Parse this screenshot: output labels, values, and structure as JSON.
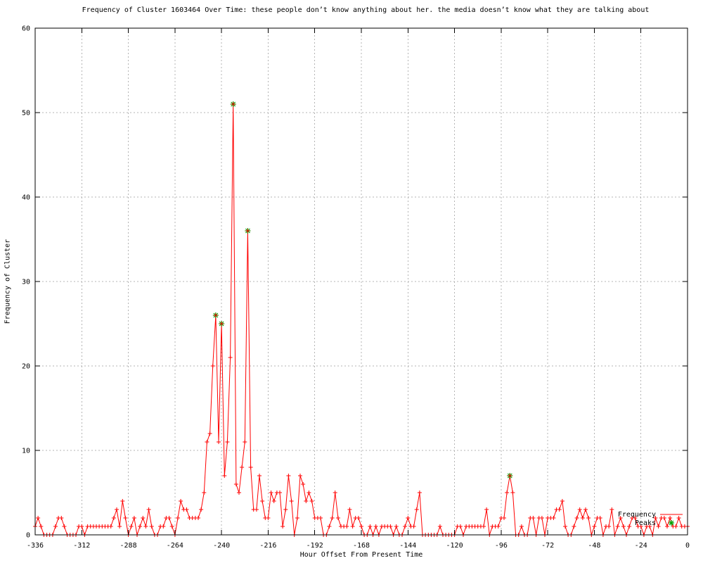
{
  "title": "Frequency of Cluster 1603464 Over Time: these people don’t know anything about her. the media doesn’t know what they are talking about",
  "axes": {
    "x": {
      "label": "Hour Offset From Present Time",
      "ticks": [
        -336,
        -312,
        -288,
        -264,
        -240,
        -216,
        -192,
        -168,
        -144,
        -120,
        -96,
        -72,
        -48,
        -24,
        0
      ]
    },
    "y": {
      "label": "Frequency of Cluster",
      "ticks": [
        0,
        10,
        20,
        30,
        40,
        50,
        60
      ]
    }
  },
  "legend": [
    {
      "label": "Frequency",
      "sample": "line"
    },
    {
      "label": "Peaks",
      "sample": "asterisk"
    }
  ],
  "colors": {
    "line": "#ff0000",
    "peak_marker": "#00a000",
    "grid": "#b4b4b4",
    "axis": "#000000",
    "text": "#000000",
    "background": "#ffffff"
  },
  "chart_data": {
    "type": "line",
    "title": "Frequency of Cluster 1603464 Over Time: these people don’t know anything about her. the media doesn’t know what they are talking about",
    "xlabel": "Hour Offset From Present Time",
    "ylabel": "Frequency of Cluster",
    "xlim": [
      -336,
      0
    ],
    "ylim": [
      0,
      60
    ],
    "grid": true,
    "legend_position": "bottom-right",
    "x_start": -336,
    "x_step": 1.5,
    "series": [
      {
        "name": "Frequency",
        "marker": "plus",
        "values": [
          1,
          2,
          1,
          0,
          0,
          0,
          0,
          1,
          2,
          2,
          1,
          0,
          0,
          0,
          0,
          1,
          1,
          0,
          1,
          1,
          1,
          1,
          1,
          1,
          1,
          1,
          1,
          2,
          3,
          1,
          4,
          2,
          0,
          1,
          2,
          0,
          1,
          2,
          1,
          3,
          1,
          0,
          0,
          1,
          1,
          2,
          2,
          1,
          0,
          2,
          4,
          3,
          3,
          2,
          2,
          2,
          2,
          3,
          5,
          11,
          12,
          20,
          26,
          11,
          25,
          7,
          11,
          21,
          51,
          6,
          5,
          8,
          11,
          36,
          8,
          3,
          3,
          7,
          4,
          2,
          2,
          5,
          4,
          5,
          5,
          1,
          3,
          7,
          4,
          0,
          2,
          7,
          6,
          4,
          5,
          4,
          2,
          2,
          2,
          0,
          0,
          1,
          2,
          5,
          2,
          1,
          1,
          1,
          3,
          1,
          2,
          2,
          1,
          0,
          0,
          1,
          0,
          1,
          0,
          1,
          1,
          1,
          1,
          0,
          1,
          0,
          0,
          1,
          2,
          1,
          1,
          3,
          5,
          0,
          0,
          0,
          0,
          0,
          0,
          1,
          0,
          0,
          0,
          0,
          0,
          1,
          1,
          0,
          1,
          1,
          1,
          1,
          1,
          1,
          1,
          3,
          0,
          1,
          1,
          1,
          2,
          2,
          5,
          7,
          5,
          0,
          0,
          1,
          0,
          0,
          2,
          2,
          0,
          2,
          2,
          0,
          2,
          2,
          2,
          3,
          3,
          4,
          1,
          0,
          0,
          1,
          2,
          3,
          2,
          3,
          2,
          0,
          1,
          2,
          2,
          0,
          1,
          1,
          3,
          0,
          1,
          2,
          1,
          0,
          1,
          2,
          2,
          1,
          1,
          0,
          1,
          1,
          0,
          2,
          1,
          2,
          2,
          1,
          2,
          1,
          1,
          2,
          1,
          1,
          1
        ]
      },
      {
        "name": "Peaks",
        "marker": "asterisk",
        "points": [
          [
            -243,
            26
          ],
          [
            -240,
            25
          ],
          [
            -234,
            51
          ],
          [
            -226.5,
            36
          ],
          [
            -91.5,
            7
          ]
        ]
      }
    ]
  }
}
